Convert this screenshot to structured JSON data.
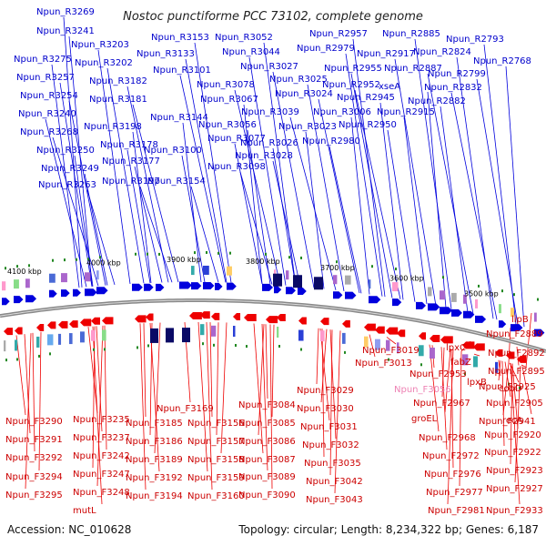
{
  "title": "Nostoc punctiforme PCC 73102, complete genome",
  "footer": {
    "accession": "Accession: NC_010628",
    "summary": "Topology: circular; Length: 8,234,322 bp; Genes: 6,187"
  },
  "colors": {
    "forward_strand": "#0000dd",
    "reverse_strand": "#ee0000",
    "highlight": "#ee82b4",
    "backbone": "#888888"
  },
  "kbp_labels": [
    "3500 kbp",
    "3600 kbp",
    "3700 kbp",
    "3800 kbp",
    "3900 kbp",
    "4000 kbp",
    "4100 kbp"
  ],
  "forward_labels": [
    "Npun_R3269",
    "Npun_R3241",
    "Npun_R3275",
    "Npun_R3257",
    "Npun_R3254",
    "Npun_R3240",
    "Npun_R3268",
    "Npun_R3250",
    "Npun_R3249",
    "Npun_R3263",
    "Npun_R3203",
    "Npun_R3202",
    "Npun_R3182",
    "Npun_R3181",
    "Npun_R3198",
    "Npun_R3178",
    "Npun_R3177",
    "Npun_R3197",
    "Npun_R3153",
    "Npun_R3133",
    "Npun_R3101",
    "Npun_R3144",
    "Npun_R3100",
    "Npun_R3154",
    "Npun_R3052",
    "Npun_R3044",
    "Npun_R3027",
    "Npun_R3078",
    "Npun_R3067",
    "Npun_R3056",
    "Npun_R3077",
    "Npun_R3098",
    "Npun_R3025",
    "Npun_R3024",
    "Npun_R3039",
    "Npun_R3023",
    "Npun_R3026",
    "Npun_R3028",
    "Npun_R2957",
    "Npun_R2979",
    "Npun_R2955",
    "Npun_R2952",
    "Npun_R3006",
    "Npun_R2945",
    "Npun_R2950",
    "Npun_R2980",
    "Npun_R2885",
    "Npun_R2917",
    "Npun_R2887",
    "xseA",
    "Npun_R2915",
    "Npun_R2882",
    "Npun_R2793",
    "Npun_R2824",
    "Npun_R2799",
    "Npun_R2832",
    "Npun_R2768"
  ],
  "reverse_labels": [
    "Npun_F3290",
    "Npun_F3291",
    "Npun_F3292",
    "Npun_F3294",
    "Npun_F3295",
    "Npun_F3235",
    "Npun_F3237",
    "Npun_F3242",
    "Npun_F3247",
    "Npun_F3248",
    "mutL",
    "Npun_F3169",
    "Npun_F3185",
    "Npun_F3186",
    "Npun_F3189",
    "Npun_F3192",
    "Npun_F3194",
    "Npun_F3156",
    "Npun_F3157",
    "Npun_F3158",
    "Npun_F3159",
    "Npun_F3160",
    "Npun_F3084",
    "Npun_F3085",
    "Npun_F3086",
    "Npun_F3087",
    "Npun_F3089",
    "Npun_F3090",
    "Npun_F3029",
    "Npun_F3030",
    "Npun_F3031",
    "Npun_F3032",
    "Npun_F3035",
    "Npun_F3042",
    "Npun_F3043",
    "Npun_F3019",
    "Npun_F3013",
    "Npun_F2953",
    "Npun_F2967",
    "groEL",
    "Npun_F2968",
    "Npun_F2972",
    "Npun_F2976",
    "Npun_F2977",
    "Npun_F2981",
    "lpxC",
    "fabZ",
    "lpxB",
    "Npun_F2925",
    "Npun_F2941",
    "recA",
    "Npun_F2920",
    "Npun_F2922",
    "Npun_F2923",
    "Npun_F2927",
    "Npun_F2933",
    "lipB",
    "Npun_F2889",
    "Npun_F2892",
    "Npun_F2895",
    "cobD",
    "Npun_F2905"
  ],
  "highlight_label": "Npun_F3056"
}
